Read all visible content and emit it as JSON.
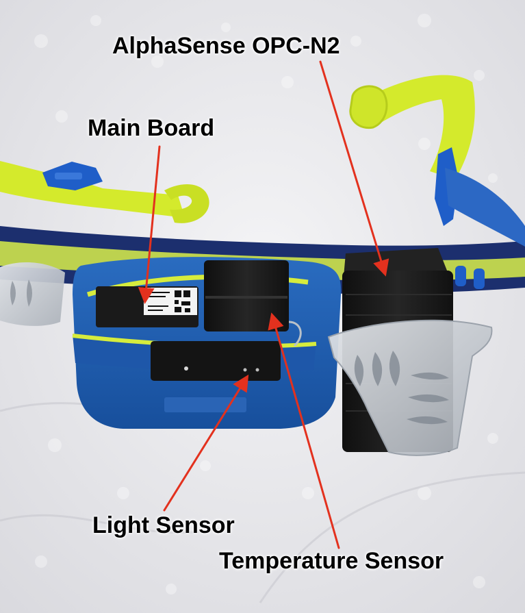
{
  "photo": {
    "subject": "running belt with sensors",
    "colors": {
      "background_cloth": "#ededf0",
      "belt_blue": "#1d5fb3",
      "belt_navy": "#1c2f6e",
      "strap_yellow": "#d4ea2c",
      "sensor_black": "#161616",
      "clip_translucent": "#c9cdd2",
      "arrow_red": "#e3311e"
    }
  },
  "callouts": {
    "opc": "AlphaSense OPC-N2",
    "main_board": "Main Board",
    "light_sensor": "Light Sensor",
    "temperature_sensor": "Temperature Sensor"
  }
}
